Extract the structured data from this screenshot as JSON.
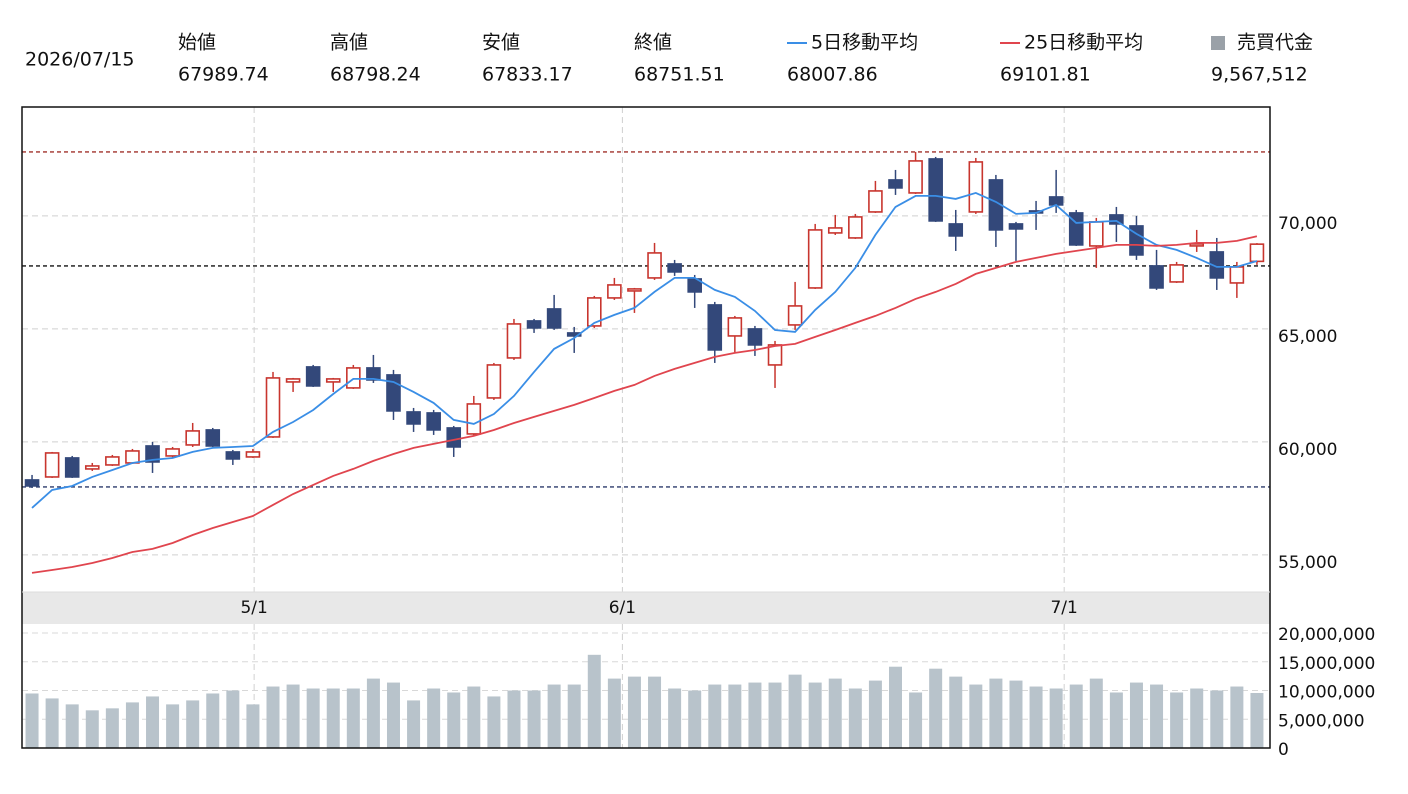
{
  "chart_data": {
    "type": "candlestick",
    "date": "2026/07/15",
    "summary": [
      {
        "label": "始値",
        "field": "open"
      },
      {
        "label": "高値",
        "field": "high"
      },
      {
        "label": "安値",
        "field": "low"
      },
      {
        "label": "終値",
        "field": "close"
      }
    ],
    "up_color": "#c8352e",
    "down_color": "#33487a",
    "candles": {
      "open": [
        58318,
        58450,
        59292,
        58805,
        58982,
        59070,
        59822,
        59380,
        59867,
        60531,
        59557,
        59336,
        60221,
        62655,
        63319,
        62655,
        62390,
        63275,
        62965,
        61327,
        61283,
        60619,
        60354,
        61947,
        63717,
        65354,
        65885,
        64823,
        65133,
        66372,
        66681,
        67257,
        67876,
        67212,
        66062,
        64690,
        65000,
        63407,
        65177,
        66814,
        69248,
        69027,
        70177,
        71593,
        71018,
        72522,
        69646,
        70177,
        71593,
        69646,
        70221,
        70840,
        70133,
        68672,
        70044,
        69557,
        67788,
        67080,
        68673,
        68407,
        67035,
        67989.74
      ],
      "high": [
        58539,
        59557,
        59380,
        59070,
        59424,
        59690,
        60000,
        59778,
        60840,
        60619,
        59645,
        59690,
        63097,
        62832,
        63407,
        62832,
        63407,
        63849,
        63186,
        61504,
        61416,
        60708,
        62035,
        63495,
        65442,
        65442,
        66504,
        65088,
        66460,
        67257,
        66814,
        68805,
        68053,
        67389,
        66195,
        65575,
        65133,
        64469,
        67080,
        69646,
        70044,
        70088,
        71549,
        72035,
        72832,
        72611,
        70265,
        72566,
        71814,
        69735,
        70663,
        72035,
        70265,
        69912,
        70398,
        70000,
        68496,
        67965,
        69381,
        69026,
        67965,
        68798.24
      ],
      "low": [
        57964,
        58406,
        58406,
        58716,
        58937,
        59026,
        58628,
        59292,
        59778,
        59778,
        58982,
        59292,
        60177,
        62212,
        62433,
        62212,
        62345,
        62610,
        60973,
        60442,
        60310,
        59336,
        60265,
        61858,
        63628,
        64823,
        64956,
        63938,
        65044,
        66283,
        65708,
        67168,
        67345,
        65929,
        63495,
        63938,
        63805,
        62389,
        64956,
        66770,
        69159,
        68983,
        70133,
        70929,
        70973,
        69735,
        68451,
        70088,
        68628,
        68009,
        69381,
        70133,
        68672,
        67699,
        68849,
        68053,
        66725,
        67035,
        68407,
        66725,
        66372,
        67833.17
      ],
      "close": [
        58052,
        59513,
        58450,
        58937,
        59336,
        59601,
        59114,
        59690,
        60487,
        59822,
        59247,
        59557,
        62832,
        62788,
        62478,
        62788,
        63275,
        62743,
        61372,
        60796,
        60531,
        59778,
        61681,
        63407,
        65221,
        65044,
        65044,
        64690,
        66372,
        66947,
        66770,
        68363,
        67522,
        66637,
        64071,
        65487,
        64292,
        64292,
        66018,
        69381,
        69469,
        69956,
        71106,
        71239,
        72434,
        69779,
        69115,
        72389,
        69381,
        69425,
        70133,
        70487,
        68717,
        69735,
        69646,
        68274,
        66814,
        67833,
        68761,
        67257,
        67743,
        68751.51
      ]
    },
    "series": [
      {
        "name": "5日移動平均",
        "color": "#3a8ee6",
        "values": [
          57079,
          57875,
          58052,
          58451,
          58760,
          59070,
          59203,
          59291,
          59557,
          59734,
          59778,
          59822,
          60442,
          60884,
          61415,
          62123,
          62787,
          62787,
          62654,
          62212,
          61725,
          60973,
          60796,
          61238,
          62035,
          63097,
          64115,
          64601,
          65265,
          65619,
          65929,
          66637,
          67256,
          67256,
          66725,
          66416,
          65796,
          64955,
          64867,
          65840,
          66637,
          67699,
          69159,
          70398,
          70885,
          70885,
          70752,
          71018,
          70619,
          70088,
          70133,
          70487,
          69690,
          69734,
          69779,
          69203,
          68717,
          68495,
          68141,
          67743,
          67743,
          68007.86
        ]
      },
      {
        "name": "25日移動平均",
        "color": "#e0454e",
        "values": [
          54203,
          54335,
          54468,
          54645,
          54866,
          55132,
          55265,
          55530,
          55884,
          56194,
          56459,
          56725,
          57212,
          57698,
          58097,
          58495,
          58805,
          59159,
          59468,
          59734,
          59911,
          60088,
          60265,
          60530,
          60840,
          61106,
          61371,
          61637,
          61946,
          62256,
          62522,
          62920,
          63230,
          63495,
          63761,
          63938,
          64070,
          64247,
          64336,
          64646,
          64955,
          65265,
          65575,
          65929,
          66327,
          66637,
          66991,
          67433,
          67699,
          67964,
          68141,
          68318,
          68451,
          68584,
          68717,
          68717,
          68672,
          68717,
          68805,
          68805,
          68894,
          69101.81
        ]
      }
    ],
    "volume": {
      "name": "売買代金",
      "color": "#b8c3cb",
      "latest_label": "9,567,512",
      "values": [
        9483000,
        8621000,
        7586000,
        6552000,
        6897000,
        7931000,
        8966000,
        7586000,
        8276000,
        9483000,
        10000000,
        7586000,
        10690000,
        11034000,
        10345000,
        10345000,
        10345000,
        12069000,
        11379000,
        8276000,
        10345000,
        9655000,
        10690000,
        8966000,
        10000000,
        10000000,
        11034000,
        11034000,
        16207000,
        12069000,
        12414000,
        12414000,
        10345000,
        10000000,
        11034000,
        11034000,
        11379000,
        11379000,
        12759000,
        11379000,
        12069000,
        10345000,
        11724000,
        14138000,
        9655000,
        13793000,
        12414000,
        11034000,
        12069000,
        11724000,
        10690000,
        10345000,
        11034000,
        12069000,
        9655000,
        11379000,
        11034000,
        9655000,
        10345000,
        10000000,
        10690000,
        9567512
      ],
      "ylim": [
        0,
        20000000
      ],
      "yticks": [
        0,
        {
          "value": 5000000,
          "label": "5,000,000"
        },
        {
          "value": 10000000,
          "label": "10,000,000"
        },
        {
          "value": 15000000,
          "label": "15,000,000"
        },
        {
          "value": 20000000,
          "label": "20,000,000"
        }
      ]
    },
    "reference_lines": [
      {
        "value": 72832,
        "color": "#a0302a"
      },
      {
        "value": 67788,
        "color": "#111111"
      },
      {
        "value": 58008,
        "color": "#2c3a6b"
      }
    ],
    "xlim": [
      -0.5,
      61.65
    ],
    "xticks": [
      {
        "value": 11.06,
        "label": "5/1"
      },
      {
        "value": 29.4,
        "label": "6/1"
      },
      {
        "value": 51.4,
        "label": "7/1"
      }
    ],
    "ylim": [
      53360,
      74820
    ],
    "yticks": [
      {
        "value": 55000,
        "label": "55,000"
      },
      {
        "value": 60000,
        "label": "60,000"
      },
      {
        "value": 65000,
        "label": "65,000"
      },
      {
        "value": 70000,
        "label": "70,000"
      }
    ],
    "grid": true
  }
}
